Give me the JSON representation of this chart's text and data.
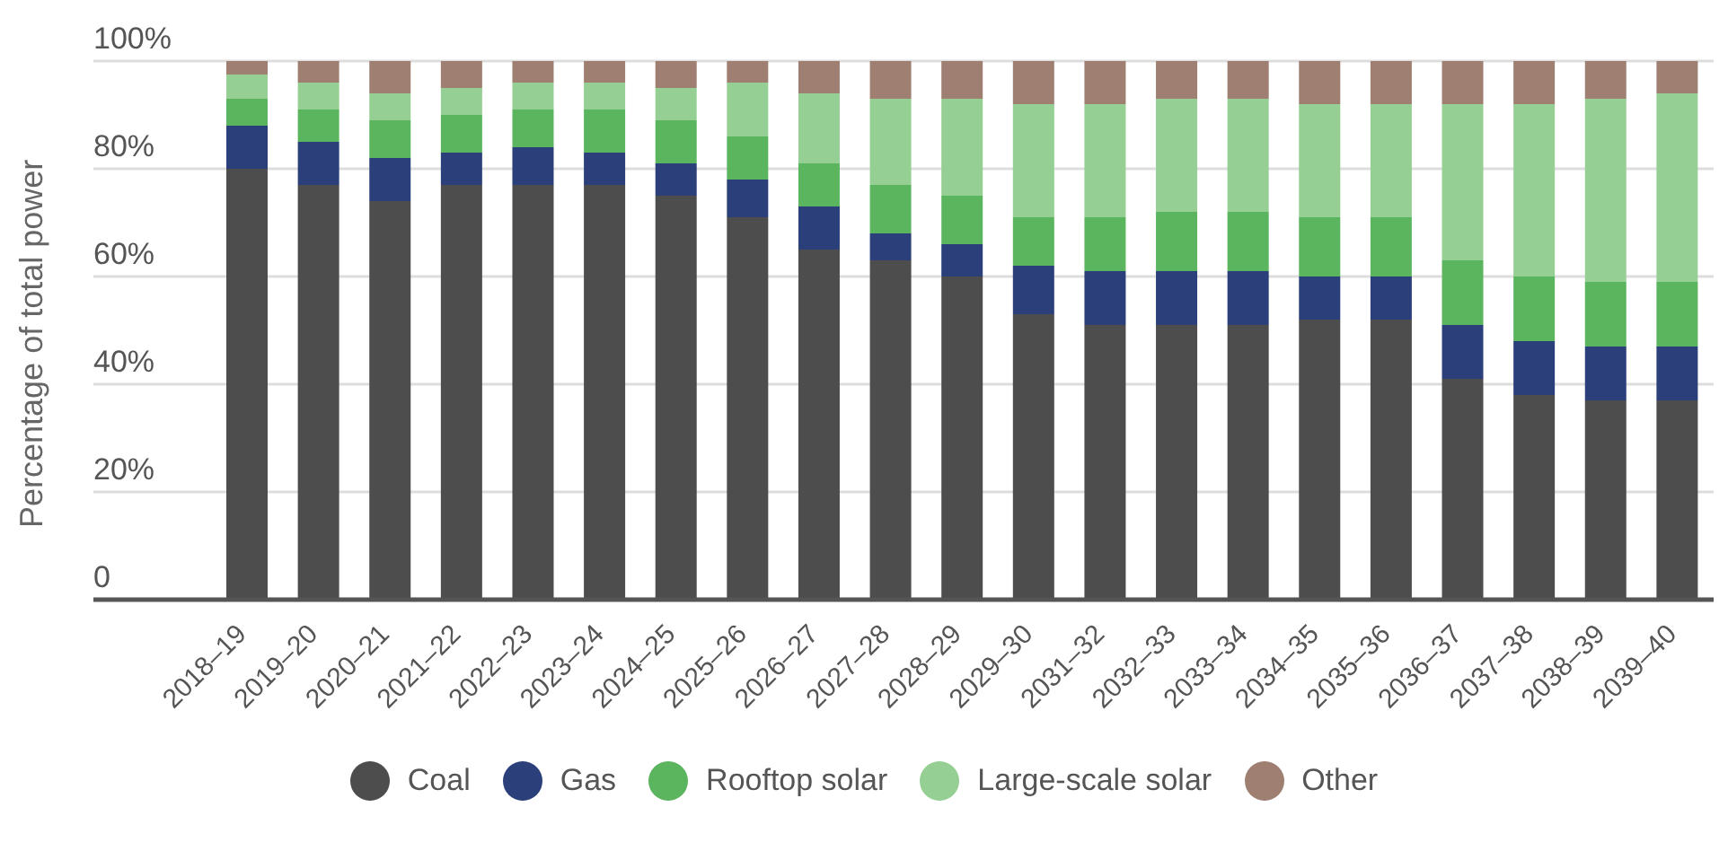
{
  "chart_data": {
    "type": "bar",
    "stacked": true,
    "ylabel": "Percentage of total power",
    "categories": [
      "2018–19",
      "2019–20",
      "2020–21",
      "2021–22",
      "2022–23",
      "2023–24",
      "2024–25",
      "2025–26",
      "2026–27",
      "2027–28",
      "2028–29",
      "2029–30",
      "2031–32",
      "2032–33",
      "2033–34",
      "2034–35",
      "2035–36",
      "2036–37",
      "2037–38",
      "2038–39",
      "2039–40"
    ],
    "series": [
      {
        "name": "Coal",
        "color": "#4d4d4d",
        "values": [
          80,
          77,
          74,
          77,
          77,
          77,
          75,
          71,
          65,
          63,
          60,
          53,
          51,
          51,
          51,
          52,
          52,
          41,
          38,
          37,
          37
        ]
      },
      {
        "name": "Gas",
        "color": "#2b3f7a",
        "values": [
          8,
          8,
          8,
          6,
          7,
          6,
          6,
          7,
          8,
          5,
          6,
          9,
          10,
          10,
          10,
          8,
          8,
          10,
          10,
          10,
          10
        ]
      },
      {
        "name": "Rooftop solar",
        "color": "#5bb55f",
        "values": [
          5,
          6,
          7,
          7,
          7,
          8,
          8,
          8,
          8,
          9,
          9,
          9,
          10,
          11,
          11,
          11,
          11,
          12,
          12,
          12,
          12
        ]
      },
      {
        "name": "Large-scale solar",
        "color": "#95cf93",
        "values": [
          4.5,
          5,
          5,
          5,
          5,
          5,
          6,
          10,
          13,
          16,
          18,
          21,
          21,
          21,
          21,
          21,
          21,
          29,
          32,
          34,
          35
        ]
      },
      {
        "name": "Other",
        "color": "#9e7f72",
        "values": [
          2.5,
          4,
          6,
          5,
          4,
          4,
          5,
          4,
          6,
          7,
          7,
          8,
          8,
          7,
          7,
          8,
          8,
          8,
          8,
          7,
          6
        ]
      }
    ],
    "ylim": [
      0,
      100
    ],
    "yticks": [
      {
        "value": 0,
        "label": "0"
      },
      {
        "value": 20,
        "label": "20%"
      },
      {
        "value": 40,
        "label": "40%"
      },
      {
        "value": 60,
        "label": "60%"
      },
      {
        "value": 80,
        "label": "80%"
      },
      {
        "value": 100,
        "label": "100%"
      }
    ],
    "grid": "y",
    "legend": "bottom"
  }
}
